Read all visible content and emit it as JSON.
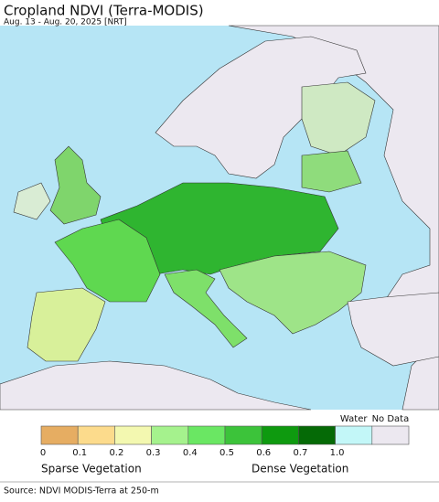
{
  "header": {
    "title": "Cropland NDVI (Terra-MODIS)",
    "subtitle": "Aug. 13 - Aug. 20, 2025 [NRT]"
  },
  "legend": {
    "scale_colors": [
      "#e6ad62",
      "#fcdb8c",
      "#f3f8b0",
      "#a5f28d",
      "#6ae763",
      "#3cc33a",
      "#0e9a0f",
      "#056a06"
    ],
    "scale_labels": [
      "0",
      "0.1",
      "0.2",
      "0.3",
      "0.4",
      "0.5",
      "0.6",
      "0.7",
      "1.0"
    ],
    "extra": [
      {
        "label": "Water",
        "color": "#c3f7f8"
      },
      {
        "label": "No Data",
        "color": "#ece8f0"
      }
    ],
    "low_label": "Sparse Vegetation",
    "high_label": "Dense Vegetation"
  },
  "footer": {
    "source": "Source: NDVI MODIS-Terra at 250-m"
  }
}
